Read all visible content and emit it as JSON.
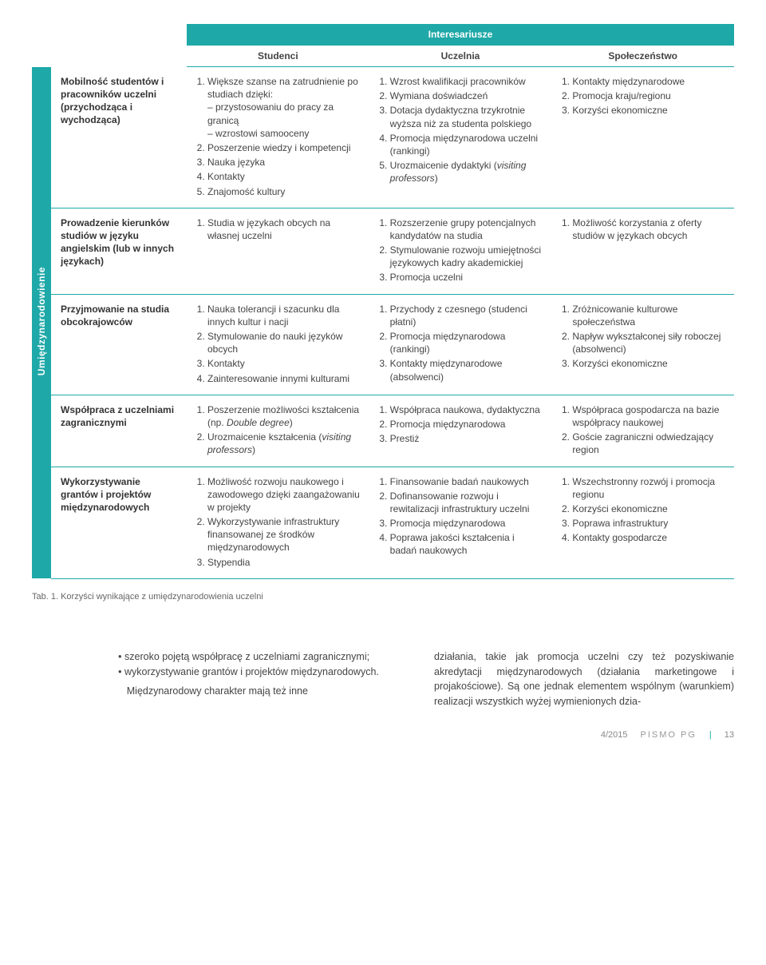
{
  "header": {
    "group": "Interesariusze",
    "col_students": "Studenci",
    "col_university": "Uczelnia",
    "col_society": "Społeczeństwo"
  },
  "side_label": "Umiędzynarodowienie",
  "rows": [
    {
      "label": "Mobilność studentów i pracowników uczelni (przychodząca i wychodząca)",
      "students": [
        "Większe szanse na zatrudnienie po studiach dzięki:\n– przystosowaniu do pracy za granicą\n– wzrostowi samooceny",
        "Poszerzenie wiedzy i kompetencji",
        "Nauka języka",
        "Kontakty",
        "Znajomość kultury"
      ],
      "university": [
        "Wzrost kwalifikacji pracowników",
        "Wymiana doświadczeń",
        "Dotacja dydaktyczna trzykrotnie wyższa niż za studenta polskiego",
        "Promocja międzynarodowa uczelni (rankingi)",
        "Urozmaicenie dydaktyki (visiting professors)"
      ],
      "society": [
        "Kontakty międzynarodowe",
        "Promocja kraju/regionu",
        "Korzyści ekonomiczne"
      ]
    },
    {
      "label": "Prowadzenie kierunków studiów w języku angielskim (lub w innych językach)",
      "students": [
        "Studia w językach obcych na własnej uczelni"
      ],
      "university": [
        "Rozszerzenie grupy potencjalnych kandydatów na studia",
        "Stymulowanie rozwoju umiejętności językowych kadry akademickiej",
        "Promocja uczelni"
      ],
      "society": [
        "Możliwość korzystania z oferty studiów w językach obcych"
      ]
    },
    {
      "label": "Przyjmowanie na studia obcokrajowców",
      "students": [
        "Nauka tolerancji i szacunku dla innych kultur i nacji",
        "Stymulowanie do nauki języków obcych",
        "Kontakty",
        "Zainteresowanie innymi kulturami"
      ],
      "university": [
        "Przychody z czesnego (studenci płatni)",
        "Promocja międzynarodowa (rankingi)",
        "Kontakty międzynarodowe (absolwenci)"
      ],
      "society": [
        "Zróżnicowanie kulturowe społeczeństwa",
        "Napływ wykształconej siły roboczej (absolwenci)",
        "Korzyści ekonomiczne"
      ]
    },
    {
      "label": "Współpraca z uczelniami zagranicznymi",
      "students": [
        "Poszerzenie możliwości kształcenia (np. Double degree)",
        "Urozmaicenie kształcenia (visiting professors)"
      ],
      "university": [
        "Współpraca naukowa, dydaktyczna",
        "Promocja międzynarodowa",
        "Prestiż"
      ],
      "society": [
        "Współpraca gospodarcza na bazie współpracy naukowej",
        "Goście zagraniczni odwiedzający region"
      ]
    },
    {
      "label": "Wykorzystywanie grantów i projektów międzynarodowych",
      "students": [
        "Możliwość rozwoju naukowego i zawodowego dzięki zaangażowaniu w projekty",
        "Wykorzystywanie infrastruktury finansowanej ze środków międzynarodowych",
        "Stypendia"
      ],
      "university": [
        "Finansowanie badań naukowych",
        "Dofinansowanie rozwoju i rewitalizacji infrastruktury uczelni",
        "Promocja międzynarodowa",
        "Poprawa jakości kształcenia i badań naukowych"
      ],
      "society": [
        "Wszechstronny rozwój i promocja regionu",
        "Korzyści ekonomiczne",
        "Poprawa infrastruktury",
        "Kontakty gospodarcze"
      ]
    }
  ],
  "caption": "Tab. 1. Korzyści wynikające z umiędzynarodowienia uczelni",
  "body_left": {
    "bullets": [
      "szeroko pojętą współpracę z uczelniami zagranicznymi;",
      "wykorzystywanie grantów i projektów międzynarodowych."
    ],
    "para": "Międzynarodowy charakter mają też inne"
  },
  "body_right": {
    "para": "działania, takie jak promocja uczelni czy też pozyskiwanie akredytacji międzynarodowych (działania marketingowe i projakościowe). Są one jednak elementem wspólnym (warunkiem) realizacji wszystkich wyżej wymienionych dzia-"
  },
  "footer": {
    "issue": "4/2015",
    "title": "PISMO PG",
    "page": "13"
  }
}
